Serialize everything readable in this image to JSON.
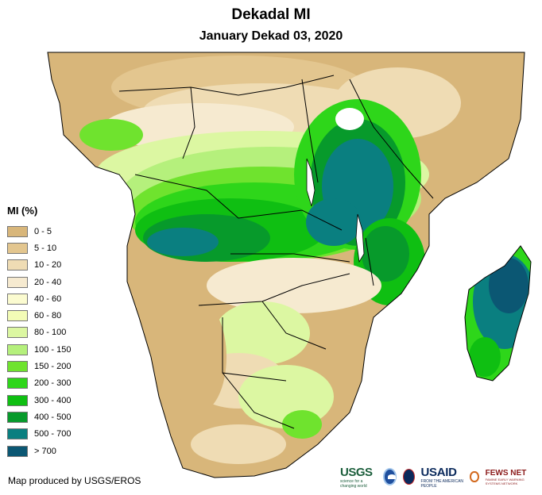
{
  "header": {
    "title": "Dekadal MI",
    "subtitle": "January Dekad 03, 2020"
  },
  "legend": {
    "title": "MI (%)",
    "items": [
      {
        "label": "0 - 5",
        "color": "#d8b67a"
      },
      {
        "label": "5 - 10",
        "color": "#e3c68f"
      },
      {
        "label": "10 - 20",
        "color": "#efdcb4"
      },
      {
        "label": "20 - 40",
        "color": "#f6ead0"
      },
      {
        "label": "40 - 60",
        "color": "#fbfbd0"
      },
      {
        "label": "60 - 80",
        "color": "#f3fcb6"
      },
      {
        "label": "80 - 100",
        "color": "#dcf7a2"
      },
      {
        "label": "100 - 150",
        "color": "#b5f07c"
      },
      {
        "label": "150 - 200",
        "color": "#6fe32e"
      },
      {
        "label": "200 - 300",
        "color": "#2ed61a"
      },
      {
        "label": "300 - 400",
        "color": "#0fbf12"
      },
      {
        "label": "400 - 500",
        "color": "#079a2b"
      },
      {
        "label": "500 - 700",
        "color": "#0a7f80"
      },
      {
        "label": "> 700",
        "color": "#0b5773"
      }
    ]
  },
  "footer": {
    "credit": "Map produced by USGS/EROS"
  },
  "logos": {
    "usgs": "USGS",
    "usgs_tagline": "science for a changing world",
    "usaid": "USAID",
    "usaid_tagline": "FROM THE AMERICAN PEOPLE",
    "fews": "FEWS NET",
    "fews_tagline": "FAMINE EARLY WARNING SYSTEMS NETWORK"
  }
}
